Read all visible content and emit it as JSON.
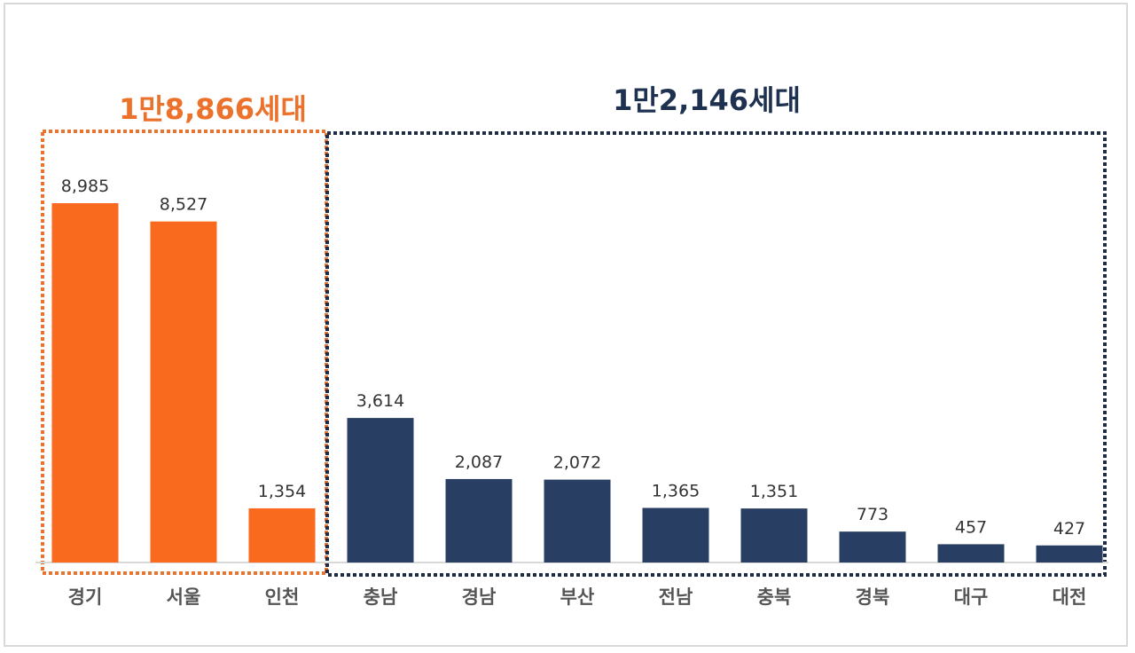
{
  "chart_data": {
    "type": "bar",
    "categories": [
      "경기",
      "서울",
      "인천",
      "충남",
      "경남",
      "부산",
      "전남",
      "충북",
      "경북",
      "대구",
      "대전"
    ],
    "values": [
      8985,
      8527,
      1354,
      3614,
      2087,
      2072,
      1365,
      1351,
      773,
      457,
      427
    ],
    "groups": [
      {
        "label": "1만8,866세대",
        "members": [
          "경기",
          "서울",
          "인천"
        ],
        "color": "#fa6a1e",
        "box_color": "#e8742f"
      },
      {
        "label": "1만2,146세대",
        "members": [
          "충남",
          "경남",
          "부산",
          "전남",
          "충북",
          "경북",
          "대구",
          "대전"
        ],
        "color": "#283f63",
        "box_color": "#1e2c45"
      }
    ],
    "title": "",
    "xlabel": "",
    "ylabel": "",
    "ylim": [
      0,
      9000
    ],
    "grid": false,
    "axis_color": "#d9d9d9"
  }
}
